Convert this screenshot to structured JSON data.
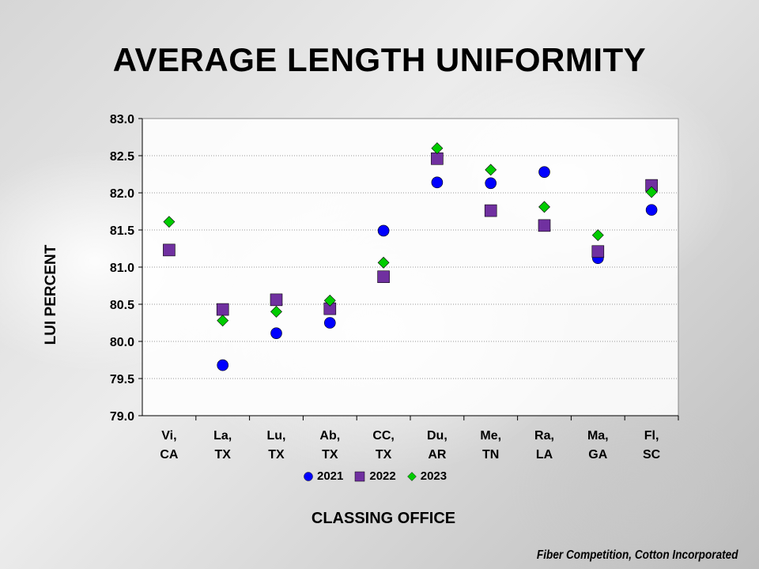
{
  "title": "AVERAGE LENGTH UNIFORMITY",
  "credit": "Fiber Competition, Cotton Incorporated",
  "chart_data": {
    "type": "scatter",
    "title": "AVERAGE LENGTH UNIFORMITY",
    "xlabel": "CLASSING OFFICE",
    "ylabel": "LUI PERCENT",
    "ylim": [
      79.0,
      83.0
    ],
    "yticks": [
      "79.0",
      "79.5",
      "80.0",
      "80.5",
      "81.0",
      "81.5",
      "82.0",
      "82.5",
      "83.0"
    ],
    "categories": [
      [
        "Vi,",
        "CA"
      ],
      [
        "La,",
        "TX"
      ],
      [
        "Lu,",
        "TX"
      ],
      [
        "Ab,",
        "TX"
      ],
      [
        "CC,",
        "TX"
      ],
      [
        "Du,",
        "AR"
      ],
      [
        "Me,",
        "TN"
      ],
      [
        "Ra,",
        "LA"
      ],
      [
        "Ma,",
        "GA"
      ],
      [
        "Fl,",
        "SC"
      ]
    ],
    "grid": true,
    "legend_position": "bottom",
    "series": [
      {
        "name": "2021",
        "marker": "circle",
        "color": "#0000ff",
        "values": [
          null,
          79.68,
          80.11,
          80.25,
          81.49,
          82.14,
          82.13,
          82.28,
          81.12,
          81.77
        ]
      },
      {
        "name": "2022",
        "marker": "square",
        "color": "#7030a0",
        "values": [
          81.23,
          80.43,
          80.56,
          80.44,
          80.87,
          82.46,
          81.76,
          81.56,
          81.21,
          82.1
        ]
      },
      {
        "name": "2023",
        "marker": "diamond",
        "color": "#00cc00",
        "values": [
          81.61,
          80.28,
          80.4,
          80.55,
          81.06,
          82.6,
          82.31,
          81.81,
          81.43,
          82.01
        ]
      }
    ]
  }
}
